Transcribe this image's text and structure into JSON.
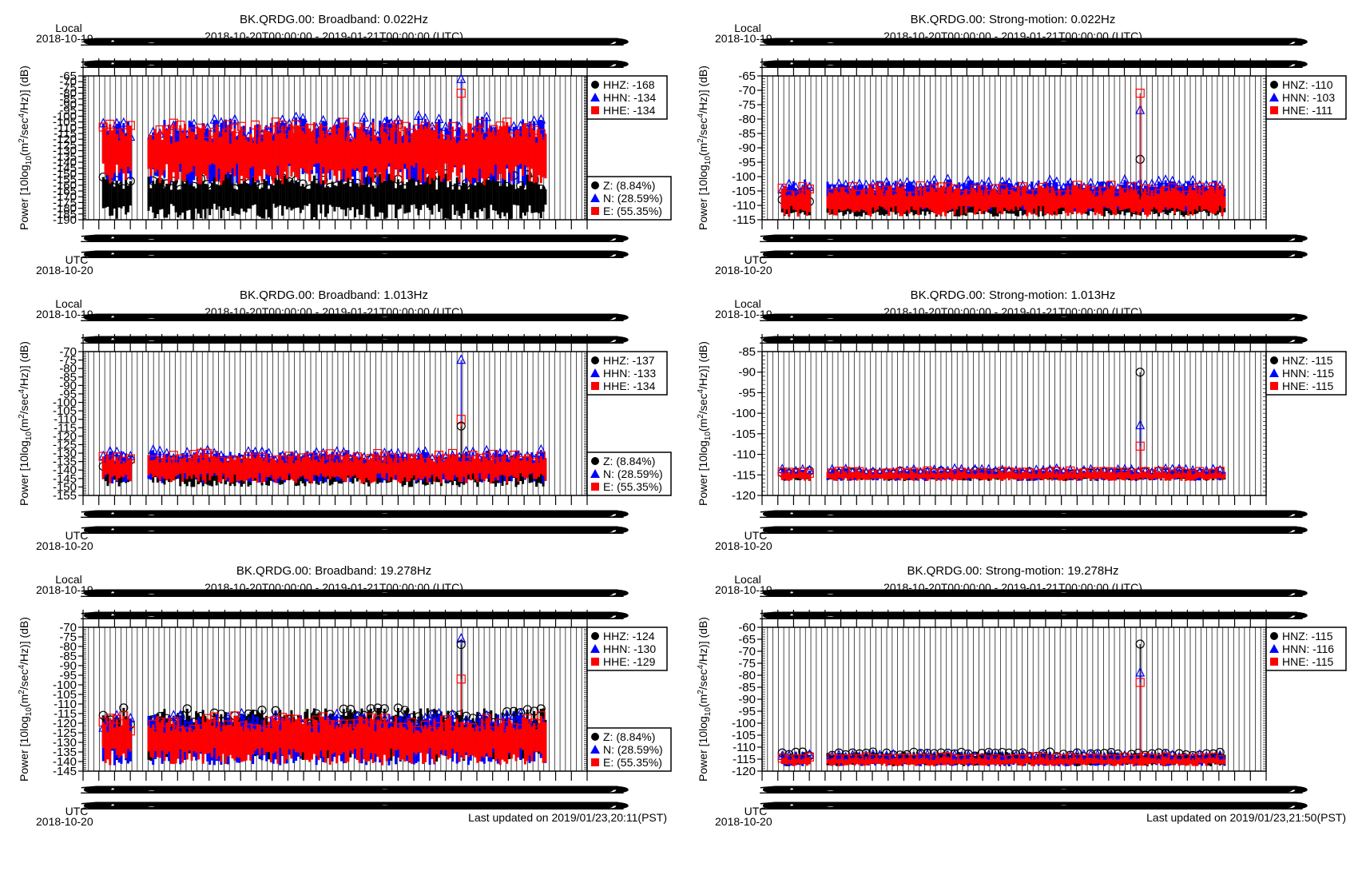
{
  "chart_data": [
    {
      "type": "scatter",
      "title": "BK.QRDG.00: Broadband: 0.022Hz",
      "subtitle": "2018-10-20T00:00:00 - 2019-01-21T00:00:00 (UTC)",
      "xlabel_top": "Local",
      "x_date_top": "2018-10-19",
      "xlabel_bottom": "UTC",
      "x_date_bottom": "2018-10-20",
      "ylabel": "Power [10log10(m2/sec4/Hz)] (dB)",
      "ylim": [
        -190,
        -65
      ],
      "ytick_step": 5,
      "grid": true,
      "series": [
        {
          "name": "HHZ",
          "median": -168,
          "color": "#000000",
          "marker": "circle",
          "band": [
            -190,
            -150
          ]
        },
        {
          "name": "HHN",
          "median": -134,
          "color": "#0000ff",
          "marker": "triangle",
          "band": [
            -160,
            -100
          ]
        },
        {
          "name": "HHE",
          "median": -134,
          "color": "#ff0000",
          "marker": "square",
          "band": [
            -160,
            -105
          ]
        }
      ],
      "spike": {
        "x_frac": 0.75,
        "values": {
          "HHN": -68,
          "HHE": -80
        }
      },
      "legend_main": [
        "HHZ: -168",
        "HHN: -134",
        "HHE: -134"
      ],
      "legend_pct": [
        "Z: (8.84%)",
        "N: (28.59%)",
        "E: (55.35%)"
      ],
      "legend_placement": "right",
      "updated": ""
    },
    {
      "type": "scatter",
      "title": "BK.QRDG.00: Strong-motion: 0.022Hz",
      "subtitle": "2018-10-20T00:00:00 - 2019-01-21T00:00:00 (UTC)",
      "xlabel_top": "Local",
      "x_date_top": "2018-10-19",
      "xlabel_bottom": "UTC",
      "x_date_bottom": "2018-10-20",
      "ylabel": "Power [10log10(m2/sec4/Hz)] (dB)",
      "ylim": [
        -115,
        -65
      ],
      "ytick_step": 5,
      "grid": true,
      "series": [
        {
          "name": "HNZ",
          "median": -110,
          "color": "#000000",
          "marker": "circle",
          "band": [
            -114,
            -108
          ]
        },
        {
          "name": "HNN",
          "median": -103,
          "color": "#0000ff",
          "marker": "triangle",
          "band": [
            -112,
            -101
          ]
        },
        {
          "name": "HNE",
          "median": -111,
          "color": "#ff0000",
          "marker": "square",
          "band": [
            -114,
            -103
          ]
        }
      ],
      "spike": {
        "x_frac": 0.75,
        "values": {
          "HNZ": -94,
          "HNN": -77,
          "HNE": -71
        }
      },
      "legend_main": [
        "HNZ: -110",
        "HNN: -103",
        "HNE: -111"
      ],
      "legend_pct": [],
      "legend_placement": "right",
      "updated": ""
    },
    {
      "type": "scatter",
      "title": "BK.QRDG.00: Broadband: 1.013Hz",
      "subtitle": "2018-10-20T00:00:00 - 2019-01-21T00:00:00 (UTC)",
      "xlabel_top": "Local",
      "x_date_top": "2018-10-19",
      "xlabel_bottom": "UTC",
      "x_date_bottom": "2018-10-20",
      "ylabel": "Power [10log10(m2/sec4/Hz)] (dB)",
      "ylim": [
        -155,
        -70
      ],
      "ytick_step": 5,
      "grid": true,
      "series": [
        {
          "name": "HHZ",
          "median": -137,
          "color": "#000000",
          "marker": "circle",
          "band": [
            -150,
            -133
          ]
        },
        {
          "name": "HHN",
          "median": -133,
          "color": "#0000ff",
          "marker": "triangle",
          "band": [
            -148,
            -128
          ]
        },
        {
          "name": "HHE",
          "median": -134,
          "color": "#ff0000",
          "marker": "square",
          "band": [
            -148,
            -130
          ]
        }
      ],
      "spike": {
        "x_frac": 0.75,
        "values": {
          "HHN": -75,
          "HHE": -110,
          "HHZ": -114
        }
      },
      "legend_main": [
        "HHZ: -137",
        "HHN: -133",
        "HHE: -134"
      ],
      "legend_pct": [
        "Z: (8.84%)",
        "N: (28.59%)",
        "E: (55.35%)"
      ],
      "legend_placement": "right",
      "updated": ""
    },
    {
      "type": "scatter",
      "title": "BK.QRDG.00: Strong-motion: 1.013Hz",
      "subtitle": "2018-10-20T00:00:00 - 2019-01-21T00:00:00 (UTC)",
      "xlabel_top": "Local",
      "x_date_top": "2018-10-19",
      "xlabel_bottom": "UTC",
      "x_date_bottom": "2018-10-20",
      "ylabel": "Power [10log10(m2/sec4/Hz)] (dB)",
      "ylim": [
        -120,
        -85
      ],
      "ytick_step": 5,
      "grid": true,
      "series": [
        {
          "name": "HNZ",
          "median": -115,
          "color": "#000000",
          "marker": "circle",
          "band": [
            -116.5,
            -114
          ]
        },
        {
          "name": "HNN",
          "median": -115,
          "color": "#0000ff",
          "marker": "triangle",
          "band": [
            -116.5,
            -113.5
          ]
        },
        {
          "name": "HNE",
          "median": -115,
          "color": "#ff0000",
          "marker": "square",
          "band": [
            -116.5,
            -114
          ]
        }
      ],
      "spike": {
        "x_frac": 0.75,
        "values": {
          "HNZ": -90,
          "HNN": -103,
          "HNE": -108
        }
      },
      "legend_main": [
        "HNZ: -115",
        "HNN: -115",
        "HNE: -115"
      ],
      "legend_pct": [],
      "legend_placement": "right",
      "updated": ""
    },
    {
      "type": "scatter",
      "title": "BK.QRDG.00: Broadband: 19.278Hz",
      "subtitle": "2018-10-20T00:00:00 - 2019-01-21T00:00:00 (UTC)",
      "xlabel_top": "Local",
      "x_date_top": "2018-10-19",
      "xlabel_bottom": "UTC",
      "x_date_bottom": "2018-10-20",
      "ylabel": "Power [10log10(m2/sec4/Hz)] (dB)",
      "ylim": [
        -145,
        -70
      ],
      "ytick_step": 5,
      "grid": true,
      "series": [
        {
          "name": "HHZ",
          "median": -124,
          "color": "#000000",
          "marker": "circle",
          "band": [
            -140,
            -112
          ]
        },
        {
          "name": "HHN",
          "median": -130,
          "color": "#0000ff",
          "marker": "triangle",
          "band": [
            -142,
            -115
          ]
        },
        {
          "name": "HHE",
          "median": -129,
          "color": "#ff0000",
          "marker": "square",
          "band": [
            -142,
            -116
          ]
        }
      ],
      "spike": {
        "x_frac": 0.75,
        "values": {
          "HHN": -76,
          "HHZ": -79,
          "HHE": -97
        }
      },
      "legend_main": [
        "HHZ: -124",
        "HHN: -130",
        "HHE: -129"
      ],
      "legend_pct": [
        "Z: (8.84%)",
        "N: (28.59%)",
        "E: (55.35%)"
      ],
      "legend_placement": "right",
      "updated": "Last updated on 2019/01/23,20:11(PST)"
    },
    {
      "type": "scatter",
      "title": "BK.QRDG.00: Strong-motion: 19.278Hz",
      "subtitle": "2018-10-20T00:00:00 - 2019-01-21T00:00:00 (UTC)",
      "xlabel_top": "Local",
      "x_date_top": "2018-10-19",
      "xlabel_bottom": "UTC",
      "x_date_bottom": "2018-10-20",
      "ylabel": "Power [10log10(m2/sec4/Hz)] (dB)",
      "ylim": [
        -120,
        -60
      ],
      "ytick_step": 5,
      "grid": true,
      "series": [
        {
          "name": "HNZ",
          "median": -115,
          "color": "#000000",
          "marker": "circle",
          "band": [
            -118,
            -112
          ]
        },
        {
          "name": "HNN",
          "median": -116,
          "color": "#0000ff",
          "marker": "triangle",
          "band": [
            -118,
            -113
          ]
        },
        {
          "name": "HNE",
          "median": -115,
          "color": "#ff0000",
          "marker": "square",
          "band": [
            -118,
            -114
          ]
        }
      ],
      "spike": {
        "x_frac": 0.75,
        "values": {
          "HNZ": -67,
          "HNN": -79,
          "HNE": -83
        }
      },
      "legend_main": [
        "HNZ: -115",
        "HNN: -116",
        "HNE: -115"
      ],
      "legend_pct": [],
      "legend_placement": "right",
      "updated": "Last updated on 2019/01/23,21:50(PST)"
    }
  ],
  "x_tick_label_noise": "10020222233345556780010203040506070809101112131415161718192021222324252627282930010203040506070809101112131415161718192021222324252627282930313233",
  "colors": {
    "z": "#000000",
    "n": "#0000ff",
    "e": "#ff0000"
  }
}
